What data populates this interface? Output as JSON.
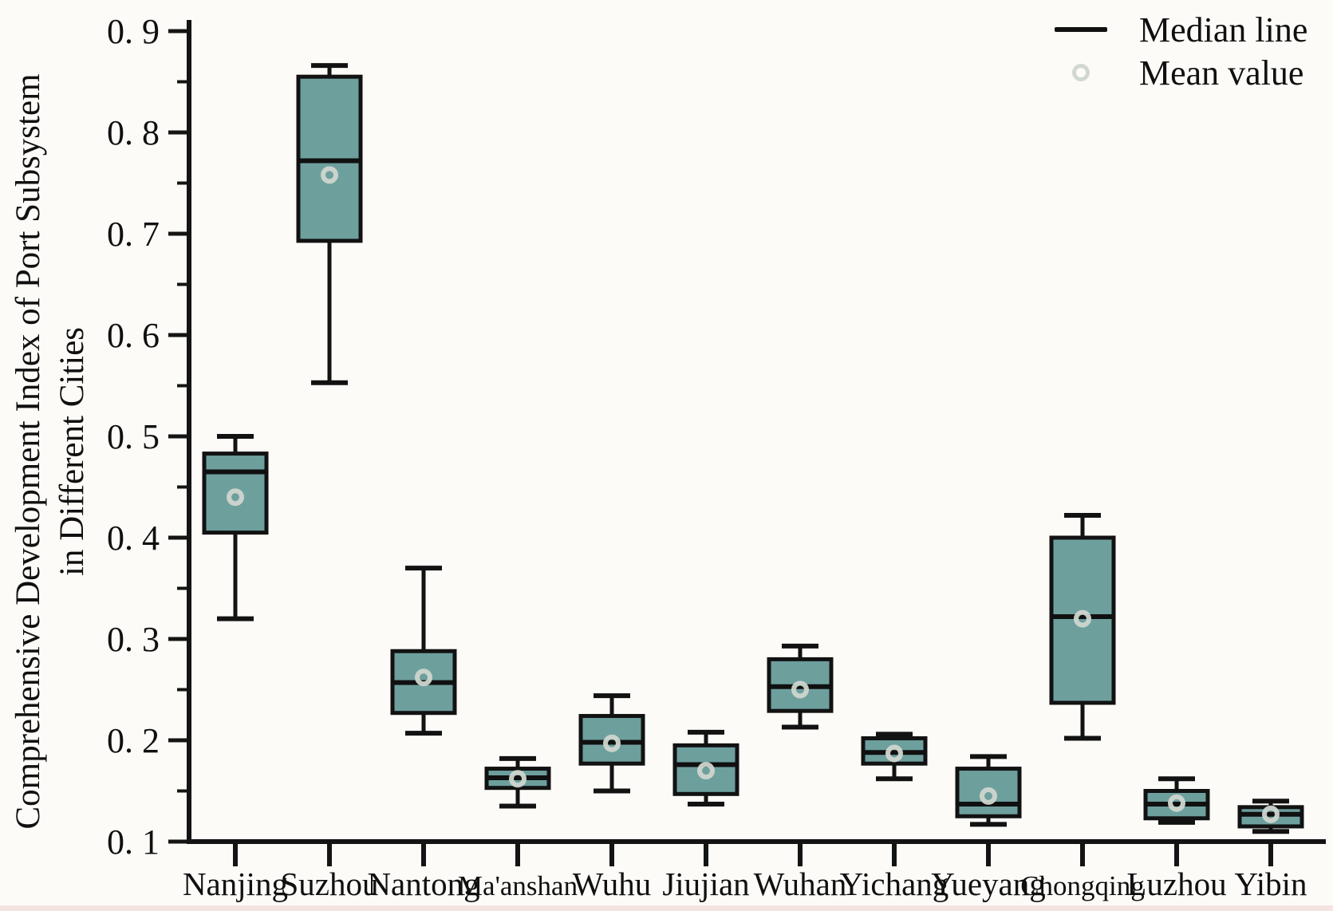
{
  "chart_data": {
    "type": "boxplot",
    "title": "",
    "xlabel": "",
    "ylabel_lines": [
      "Comprehensive Development Index of Port Subsystem",
      "in Different Cities"
    ],
    "ylim": [
      0.1,
      0.9
    ],
    "ytick_step": 0.1,
    "ytick_minor_step": 0.05,
    "ytick_labels": [
      "0. 1",
      "0. 2",
      "0. 3",
      "0. 4",
      "0. 5",
      "0. 6",
      "0. 7",
      "0. 8",
      "0. 9"
    ],
    "grid": false,
    "legend_position": "top-right",
    "legend_entries": [
      "Median line",
      "Mean value"
    ],
    "categories": [
      "Nanjing",
      "Suzhou",
      "Nantong",
      "Ma'anshan",
      "Wuhu",
      "Jiujian",
      "Wuhan",
      "Yichang",
      "Yueyang",
      "Chongqing",
      "Luzhou",
      "Yibin"
    ],
    "series": [
      {
        "name": "Nanjing",
        "whisker_low": 0.32,
        "q1": 0.405,
        "median": 0.465,
        "q3": 0.483,
        "whisker_high": 0.5,
        "mean": 0.44
      },
      {
        "name": "Suzhou",
        "whisker_low": 0.553,
        "q1": 0.693,
        "median": 0.772,
        "q3": 0.855,
        "whisker_high": 0.866,
        "mean": 0.758
      },
      {
        "name": "Nantong",
        "whisker_low": 0.207,
        "q1": 0.227,
        "median": 0.257,
        "q3": 0.288,
        "whisker_high": 0.37,
        "mean": 0.262
      },
      {
        "name": "Ma'anshan",
        "whisker_low": 0.135,
        "q1": 0.153,
        "median": 0.163,
        "q3": 0.172,
        "whisker_high": 0.182,
        "mean": 0.162
      },
      {
        "name": "Wuhu",
        "whisker_low": 0.15,
        "q1": 0.177,
        "median": 0.198,
        "q3": 0.224,
        "whisker_high": 0.244,
        "mean": 0.197
      },
      {
        "name": "Jiujian",
        "whisker_low": 0.137,
        "q1": 0.147,
        "median": 0.176,
        "q3": 0.195,
        "whisker_high": 0.208,
        "mean": 0.17
      },
      {
        "name": "Wuhan",
        "whisker_low": 0.213,
        "q1": 0.229,
        "median": 0.253,
        "q3": 0.28,
        "whisker_high": 0.293,
        "mean": 0.25
      },
      {
        "name": "Yichang",
        "whisker_low": 0.162,
        "q1": 0.177,
        "median": 0.188,
        "q3": 0.202,
        "whisker_high": 0.206,
        "mean": 0.187
      },
      {
        "name": "Yueyang",
        "whisker_low": 0.117,
        "q1": 0.125,
        "median": 0.137,
        "q3": 0.172,
        "whisker_high": 0.184,
        "mean": 0.145
      },
      {
        "name": "Chongqing",
        "whisker_low": 0.202,
        "q1": 0.237,
        "median": 0.322,
        "q3": 0.4,
        "whisker_high": 0.422,
        "mean": 0.32
      },
      {
        "name": "Luzhou",
        "whisker_low": 0.119,
        "q1": 0.123,
        "median": 0.137,
        "q3": 0.15,
        "whisker_high": 0.162,
        "mean": 0.138
      },
      {
        "name": "Yibin",
        "whisker_low": 0.11,
        "q1": 0.115,
        "median": 0.127,
        "q3": 0.134,
        "whisker_high": 0.14,
        "mean": 0.127
      }
    ],
    "colors": {
      "box_fill": "#6d9f9d",
      "box_edge": "#121212",
      "median_line": "#101010",
      "mean_marker": "#cfd6cf",
      "axis": "#141414",
      "background": "#fcfbf8"
    }
  }
}
